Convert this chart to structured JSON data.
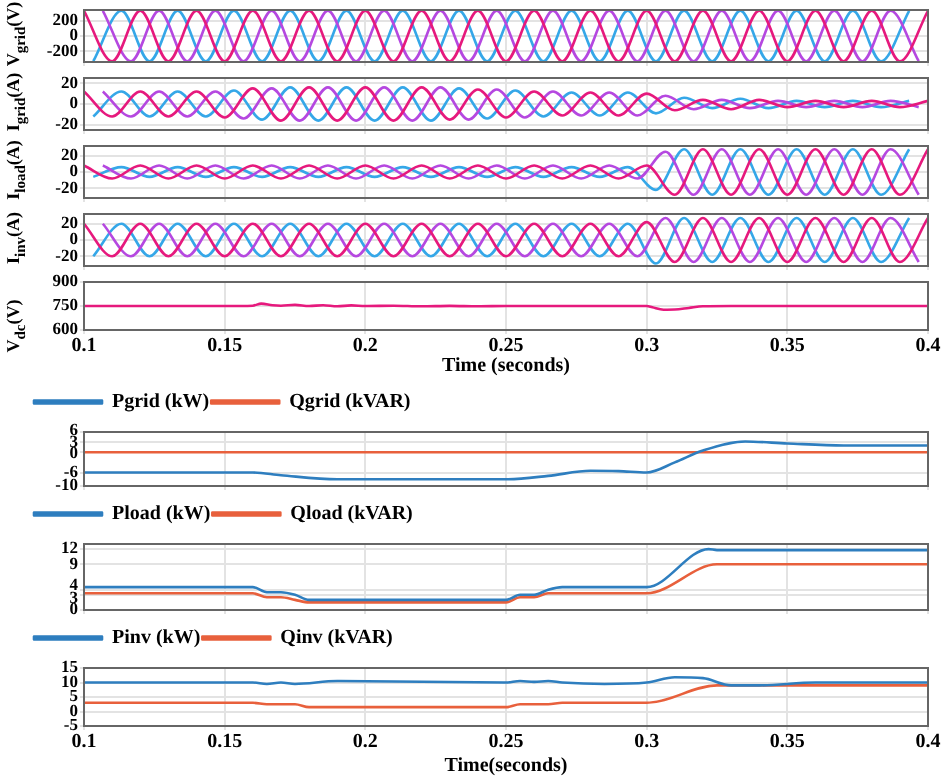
{
  "chart_data": [
    {
      "type": "line",
      "ylabel": "V$_{grid}$(V)",
      "xlim": [
        0.1,
        0.4
      ],
      "xticks": [
        0.1,
        0.15,
        0.2,
        0.25,
        0.3,
        0.35,
        0.4
      ],
      "ylim": [
        -340,
        340
      ],
      "yticks": [
        -200,
        0,
        200
      ],
      "grid": true,
      "tick_labels": "y",
      "series": [
        {
          "color": "#e6197d",
          "x": [
            0.1,
            0.11,
            0.12,
            0.13,
            0.14,
            0.15,
            0.16,
            0.17,
            0.18,
            0.19,
            0.2,
            0.21,
            0.22,
            0.23,
            0.24,
            0.25,
            0.26,
            0.27,
            0.28,
            0.29,
            0.3,
            0.31,
            0.32,
            0.33,
            0.34,
            0.35,
            0.36,
            0.37,
            0.38,
            0.39,
            0.4
          ],
          "values": [
            330,
            -330,
            330,
            -330,
            330,
            -330,
            330,
            -330,
            330,
            -330,
            330,
            -330,
            330,
            -330,
            330,
            -330,
            330,
            -330,
            330,
            -330,
            330,
            -330,
            330,
            -330,
            330,
            -330,
            330,
            -330,
            330,
            -330,
            330
          ]
        },
        {
          "color": "#b548e0",
          "x": [
            0.1067,
            0.1167,
            0.1267,
            0.1367,
            0.1467,
            0.1567,
            0.1667,
            0.1767,
            0.1867,
            0.1967,
            0.2067,
            0.2167,
            0.2267,
            0.2367,
            0.2467,
            0.2567,
            0.2667,
            0.2767,
            0.2867,
            0.2967,
            0.3067,
            0.3167,
            0.3267,
            0.3367,
            0.3467,
            0.3567,
            0.3667,
            0.3767,
            0.3867,
            0.3967
          ],
          "values": [
            330,
            -330,
            330,
            -330,
            330,
            -330,
            330,
            -330,
            330,
            -330,
            330,
            -330,
            330,
            -330,
            330,
            -330,
            330,
            -330,
            330,
            -330,
            330,
            -330,
            330,
            -330,
            330,
            -330,
            330,
            -330,
            330,
            -330
          ]
        },
        {
          "color": "#35a7e8",
          "x": [
            0.1033,
            0.1133,
            0.1233,
            0.1333,
            0.1433,
            0.1533,
            0.1633,
            0.1733,
            0.1833,
            0.1933,
            0.2033,
            0.2133,
            0.2233,
            0.2333,
            0.2433,
            0.2533,
            0.2633,
            0.2733,
            0.2833,
            0.2933,
            0.3033,
            0.3133,
            0.3233,
            0.3333,
            0.3433,
            0.3533,
            0.3633,
            0.3733,
            0.3833,
            0.3933
          ],
          "values": [
            -330,
            330,
            -330,
            330,
            -330,
            330,
            -330,
            330,
            -330,
            330,
            -330,
            330,
            -330,
            330,
            -330,
            330,
            -330,
            330,
            -330,
            330,
            -330,
            330,
            -330,
            330,
            -330,
            330,
            -330,
            330,
            -330,
            330
          ]
        }
      ]
    },
    {
      "type": "line",
      "ylabel": "I$_{grid}$(A)",
      "xlim": [
        0.1,
        0.4
      ],
      "xticks": [
        0.1,
        0.15,
        0.2,
        0.25,
        0.3,
        0.35,
        0.4
      ],
      "ylim": [
        -25,
        25
      ],
      "yticks": [
        -20,
        0,
        20
      ],
      "grid": true,
      "tick_labels": "y",
      "series": [
        {
          "color": "#e6197d",
          "x": [
            0.1,
            0.11,
            0.12,
            0.13,
            0.14,
            0.15,
            0.16,
            0.17,
            0.18,
            0.19,
            0.2,
            0.21,
            0.22,
            0.23,
            0.24,
            0.25,
            0.26,
            0.27,
            0.28,
            0.29,
            0.3,
            0.31,
            0.32,
            0.33,
            0.34,
            0.35,
            0.36,
            0.37,
            0.38,
            0.39,
            0.4
          ],
          "values": [
            12,
            -12,
            12,
            -12,
            12,
            -13,
            15,
            -16,
            16,
            -16,
            16,
            -16,
            16,
            -15,
            14,
            -13,
            12,
            -11,
            11,
            -11,
            10,
            -6,
            4,
            -5,
            4,
            -3,
            3,
            -3,
            3,
            -3,
            3
          ]
        },
        {
          "color": "#b548e0",
          "x": [
            0.1067,
            0.1167,
            0.1267,
            0.1367,
            0.1467,
            0.1567,
            0.1667,
            0.1767,
            0.1867,
            0.1967,
            0.2067,
            0.2167,
            0.2267,
            0.2367,
            0.2467,
            0.2567,
            0.2667,
            0.2767,
            0.2867,
            0.2967,
            0.3067,
            0.3167,
            0.3267,
            0.3367,
            0.3467,
            0.3567,
            0.3667,
            0.3767,
            0.3867,
            0.3967
          ],
          "values": [
            12,
            -12,
            12,
            -12,
            12,
            -14,
            15,
            -16,
            16,
            -16,
            16,
            -16,
            16,
            -15,
            14,
            -13,
            12,
            -11,
            11,
            -11,
            8,
            -5,
            4,
            -4,
            3,
            -3,
            3,
            -3,
            3,
            -3
          ]
        },
        {
          "color": "#35a7e8",
          "x": [
            0.1033,
            0.1133,
            0.1233,
            0.1333,
            0.1433,
            0.1533,
            0.1633,
            0.1733,
            0.1833,
            0.1933,
            0.2033,
            0.2133,
            0.2233,
            0.2333,
            0.2433,
            0.2533,
            0.2633,
            0.2733,
            0.2833,
            0.2933,
            0.3033,
            0.3133,
            0.3233,
            0.3333,
            0.3433,
            0.3533,
            0.3633,
            0.3733,
            0.3833,
            0.3933
          ],
          "values": [
            -12,
            12,
            -12,
            12,
            -12,
            13,
            -15,
            16,
            -16,
            16,
            -16,
            16,
            -16,
            15,
            -14,
            13,
            -12,
            11,
            -11,
            11,
            -9,
            6,
            -4,
            5,
            -4,
            3,
            -3,
            3,
            -3,
            3
          ]
        }
      ]
    },
    {
      "type": "line",
      "ylabel": "I$_{load}$(A)",
      "xlim": [
        0.1,
        0.4
      ],
      "xticks": [
        0.1,
        0.15,
        0.2,
        0.25,
        0.3,
        0.35,
        0.4
      ],
      "ylim": [
        -32,
        32
      ],
      "yticks": [
        -20,
        0,
        20
      ],
      "grid": true,
      "tick_labels": "y",
      "series": [
        {
          "color": "#e6197d",
          "x": [
            0.1,
            0.11,
            0.12,
            0.13,
            0.14,
            0.15,
            0.16,
            0.17,
            0.18,
            0.19,
            0.2,
            0.21,
            0.22,
            0.23,
            0.24,
            0.25,
            0.26,
            0.27,
            0.28,
            0.29,
            0.3,
            0.31,
            0.32,
            0.33,
            0.34,
            0.35,
            0.36,
            0.37,
            0.38,
            0.39,
            0.4
          ],
          "values": [
            8,
            -8,
            8,
            -8,
            8,
            -8,
            8,
            -8,
            8,
            -8,
            8,
            -8,
            8,
            -8,
            8,
            -8,
            8,
            -8,
            8,
            -8,
            8,
            -28,
            28,
            -28,
            28,
            -28,
            28,
            -28,
            28,
            -28,
            28
          ]
        },
        {
          "color": "#b548e0",
          "x": [
            0.1067,
            0.1167,
            0.1267,
            0.1367,
            0.1467,
            0.1567,
            0.1667,
            0.1767,
            0.1867,
            0.1967,
            0.2067,
            0.2167,
            0.2267,
            0.2367,
            0.2467,
            0.2567,
            0.2667,
            0.2767,
            0.2867,
            0.2967,
            0.3067,
            0.3167,
            0.3267,
            0.3367,
            0.3467,
            0.3567,
            0.3667,
            0.3767,
            0.3867,
            0.3967
          ],
          "values": [
            8,
            -8,
            8,
            -8,
            8,
            -8,
            8,
            -8,
            8,
            -8,
            8,
            -8,
            8,
            -8,
            8,
            -8,
            8,
            -8,
            8,
            -8,
            25,
            -28,
            28,
            -28,
            28,
            -28,
            28,
            -28,
            28,
            -28
          ]
        },
        {
          "color": "#35a7e8",
          "x": [
            0.1033,
            0.1133,
            0.1233,
            0.1333,
            0.1433,
            0.1533,
            0.1633,
            0.1733,
            0.1833,
            0.1933,
            0.2033,
            0.2133,
            0.2233,
            0.2333,
            0.2433,
            0.2533,
            0.2633,
            0.2733,
            0.2833,
            0.2933,
            0.3033,
            0.3133,
            0.3233,
            0.3333,
            0.3433,
            0.3533,
            0.3633,
            0.3733,
            0.3833,
            0.3933
          ],
          "values": [
            -6,
            6,
            -6,
            6,
            -6,
            6,
            -6,
            6,
            -6,
            6,
            -6,
            6,
            -6,
            6,
            -6,
            6,
            -6,
            6,
            -6,
            6,
            -22,
            28,
            -28,
            28,
            -28,
            28,
            -28,
            28,
            -28,
            28
          ]
        }
      ]
    },
    {
      "type": "line",
      "ylabel": "I$_{inv}$(A)",
      "xlim": [
        0.1,
        0.4
      ],
      "xticks": [
        0.1,
        0.15,
        0.2,
        0.25,
        0.3,
        0.35,
        0.4
      ],
      "ylim": [
        -32,
        32
      ],
      "yticks": [
        -20,
        0,
        20
      ],
      "grid": true,
      "tick_labels": "y",
      "series": [
        {
          "color": "#e6197d",
          "x": [
            0.1,
            0.11,
            0.12,
            0.13,
            0.14,
            0.15,
            0.16,
            0.17,
            0.18,
            0.19,
            0.2,
            0.21,
            0.22,
            0.23,
            0.24,
            0.25,
            0.26,
            0.27,
            0.28,
            0.29,
            0.3,
            0.31,
            0.32,
            0.33,
            0.34,
            0.35,
            0.36,
            0.37,
            0.38,
            0.39,
            0.4
          ],
          "values": [
            20,
            -20,
            20,
            -20,
            20,
            -20,
            20,
            -20,
            20,
            -20,
            20,
            -20,
            20,
            -20,
            20,
            -20,
            20,
            -20,
            20,
            -20,
            22,
            -27,
            27,
            -27,
            27,
            -27,
            27,
            -27,
            27,
            -27,
            27
          ]
        },
        {
          "color": "#b548e0",
          "x": [
            0.1067,
            0.1167,
            0.1267,
            0.1367,
            0.1467,
            0.1567,
            0.1667,
            0.1767,
            0.1867,
            0.1967,
            0.2067,
            0.2167,
            0.2267,
            0.2367,
            0.2467,
            0.2567,
            0.2667,
            0.2767,
            0.2867,
            0.2967,
            0.3067,
            0.3167,
            0.3267,
            0.3367,
            0.3467,
            0.3567,
            0.3667,
            0.3767,
            0.3867,
            0.3967
          ],
          "values": [
            20,
            -20,
            20,
            -20,
            20,
            -20,
            20,
            -20,
            20,
            -20,
            20,
            -20,
            20,
            -20,
            20,
            -20,
            20,
            -20,
            20,
            -20,
            27,
            -27,
            27,
            -27,
            27,
            -27,
            27,
            -27,
            27,
            -27
          ]
        },
        {
          "color": "#35a7e8",
          "x": [
            0.1033,
            0.1133,
            0.1233,
            0.1333,
            0.1433,
            0.1533,
            0.1633,
            0.1733,
            0.1833,
            0.1933,
            0.2033,
            0.2133,
            0.2233,
            0.2333,
            0.2433,
            0.2533,
            0.2633,
            0.2733,
            0.2833,
            0.2933,
            0.3033,
            0.3133,
            0.3233,
            0.3333,
            0.3433,
            0.3533,
            0.3633,
            0.3733,
            0.3833,
            0.3933
          ],
          "values": [
            -20,
            20,
            -20,
            20,
            -20,
            20,
            -20,
            20,
            -20,
            20,
            -20,
            20,
            -20,
            20,
            -20,
            20,
            -20,
            20,
            -20,
            20,
            -29,
            27,
            -27,
            27,
            -27,
            27,
            -27,
            27,
            -27,
            27
          ]
        }
      ]
    },
    {
      "type": "line",
      "ylabel": "V$_{dc}$(V)",
      "xlabel": "Time (seconds)",
      "xlim": [
        0.1,
        0.4
      ],
      "xticks": [
        0.1,
        0.15,
        0.2,
        0.25,
        0.3,
        0.35,
        0.4
      ],
      "ylim": [
        600,
        900
      ],
      "yticks": [
        600,
        750,
        900
      ],
      "grid": true,
      "series": [
        {
          "color": "#e6197d",
          "x": [
            0.1,
            0.15,
            0.16,
            0.163,
            0.167,
            0.17,
            0.175,
            0.18,
            0.185,
            0.19,
            0.195,
            0.2,
            0.21,
            0.22,
            0.23,
            0.24,
            0.25,
            0.3,
            0.302,
            0.306,
            0.31,
            0.315,
            0.32,
            0.33,
            0.4
          ],
          "values": [
            750,
            750,
            752,
            765,
            755,
            752,
            757,
            750,
            755,
            748,
            754,
            750,
            752,
            748,
            751,
            748,
            750,
            750,
            742,
            727,
            728,
            738,
            748,
            750,
            750
          ]
        }
      ]
    },
    {
      "type": "line",
      "xlim": [
        0.1,
        0.4
      ],
      "xticks": [
        0.1,
        0.15,
        0.2,
        0.25,
        0.3,
        0.35,
        0.4
      ],
      "ylim": [
        -10,
        6
      ],
      "yticks": [
        -10,
        -6,
        0,
        3,
        6
      ],
      "grid": true,
      "tick_labels": "y",
      "legend": "top",
      "series": [
        {
          "name": "Pgrid (kW)",
          "color": "#2e7ebf",
          "x": [
            0.1,
            0.16,
            0.17,
            0.19,
            0.25,
            0.265,
            0.28,
            0.29,
            0.3,
            0.31,
            0.32,
            0.335,
            0.35,
            0.37,
            0.4
          ],
          "values": [
            -6,
            -6,
            -6.8,
            -8,
            -8,
            -7,
            -5.5,
            -5.6,
            -6,
            -3,
            0.5,
            3.2,
            2.6,
            2,
            2
          ]
        },
        {
          "name": "Qgrid (kVAR)",
          "color": "#e8603c",
          "x": [
            0.1,
            0.4
          ],
          "values": [
            0,
            0
          ]
        }
      ]
    },
    {
      "type": "line",
      "xlim": [
        0.1,
        0.4
      ],
      "xticks": [
        0.1,
        0.15,
        0.2,
        0.25,
        0.3,
        0.35,
        0.4
      ],
      "ylim": [
        0,
        13
      ],
      "yticks": [
        0,
        3,
        4,
        9,
        12
      ],
      "grid": true,
      "tick_labels": "y",
      "legend": "top",
      "series": [
        {
          "name": "Pload (kW)",
          "color": "#2e7ebf",
          "x": [
            0.1,
            0.16,
            0.165,
            0.17,
            0.175,
            0.18,
            0.25,
            0.255,
            0.26,
            0.265,
            0.27,
            0.3,
            0.322,
            0.325,
            0.4
          ],
          "values": [
            4.5,
            4.5,
            3.5,
            3.5,
            3,
            2,
            2,
            3,
            3,
            4,
            4.5,
            4.5,
            12,
            11.8,
            11.8
          ]
        },
        {
          "name": "Qload (kVAR)",
          "color": "#e8603c",
          "x": [
            0.1,
            0.16,
            0.165,
            0.17,
            0.175,
            0.18,
            0.25,
            0.255,
            0.26,
            0.265,
            0.27,
            0.3,
            0.325,
            0.4
          ],
          "values": [
            3.3,
            3.3,
            2.5,
            2.5,
            2,
            1.5,
            1.5,
            2.5,
            2.5,
            3.3,
            3.3,
            3.3,
            9,
            9
          ]
        }
      ]
    },
    {
      "type": "line",
      "xlabel": "Time(seconds)",
      "xlim": [
        0.1,
        0.4
      ],
      "xticks": [
        0.1,
        0.15,
        0.2,
        0.25,
        0.3,
        0.35,
        0.4
      ],
      "ylim": [
        -5,
        15
      ],
      "yticks": [
        -5,
        0,
        5,
        10,
        15
      ],
      "grid": true,
      "legend": "top",
      "series": [
        {
          "name": "Pinv (kW)",
          "color": "#2e7ebf",
          "x": [
            0.1,
            0.16,
            0.165,
            0.17,
            0.175,
            0.19,
            0.25,
            0.255,
            0.26,
            0.265,
            0.27,
            0.285,
            0.3,
            0.31,
            0.32,
            0.33,
            0.34,
            0.36,
            0.4
          ],
          "values": [
            10,
            10,
            9.5,
            10,
            9.5,
            10.5,
            10,
            10.5,
            10.2,
            10.5,
            10,
            9.5,
            10,
            11.8,
            11.5,
            9,
            9,
            10,
            10
          ]
        },
        {
          "name": "Qinv (kVAR)",
          "color": "#e8603c",
          "x": [
            0.1,
            0.16,
            0.165,
            0.175,
            0.18,
            0.25,
            0.255,
            0.265,
            0.27,
            0.3,
            0.325,
            0.4
          ],
          "values": [
            3,
            3,
            2.5,
            2.5,
            1.5,
            1.5,
            2.5,
            2.5,
            3,
            3,
            9,
            9
          ]
        }
      ]
    }
  ]
}
